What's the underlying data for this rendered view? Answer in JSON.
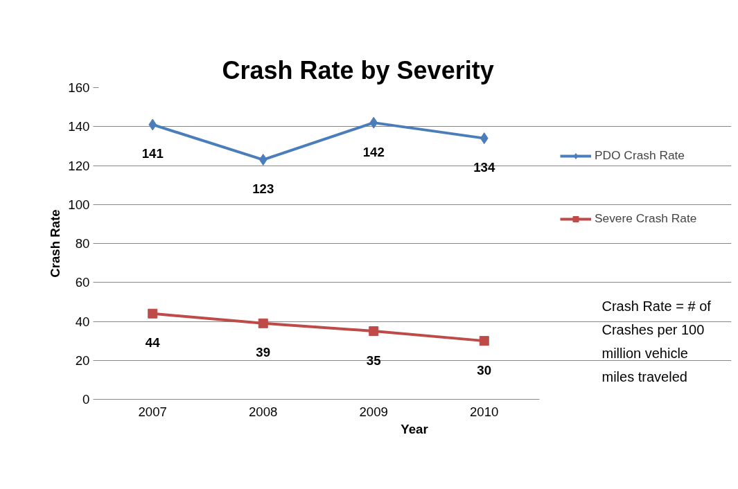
{
  "chart_data": {
    "type": "line",
    "title": "Crash Rate by Severity",
    "xlabel": "Year",
    "ylabel": "Crash Rate",
    "categories": [
      "2007",
      "2008",
      "2009",
      "2010"
    ],
    "series": [
      {
        "name": "PDO Crash Rate",
        "color": "#4a7ebb",
        "values": [
          141,
          123,
          142,
          134
        ],
        "marker": "diamond"
      },
      {
        "name": "Severe Crash Rate",
        "color": "#be4b48",
        "values": [
          44,
          39,
          35,
          30
        ],
        "marker": "square"
      }
    ],
    "ylim": [
      0,
      160
    ],
    "yticks": [
      0,
      20,
      40,
      60,
      80,
      100,
      120,
      140,
      160
    ],
    "grid": "y",
    "legend": "right",
    "data_labels": true,
    "line_style": "solid",
    "annotations": [
      "Crash Rate = # of Crashes per 100 million vehicle miles traveled"
    ]
  }
}
